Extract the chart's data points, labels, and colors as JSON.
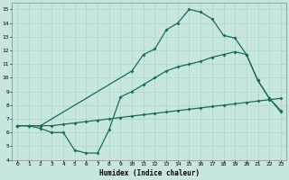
{
  "xlabel": "Humidex (Indice chaleur)",
  "xlim": [
    -0.5,
    23.5
  ],
  "ylim": [
    4,
    15.5
  ],
  "yticks": [
    4,
    5,
    6,
    7,
    8,
    9,
    10,
    11,
    12,
    13,
    14,
    15
  ],
  "xticks": [
    0,
    1,
    2,
    3,
    4,
    5,
    6,
    7,
    8,
    9,
    10,
    11,
    12,
    13,
    14,
    15,
    16,
    17,
    18,
    19,
    20,
    21,
    22,
    23
  ],
  "bg_color": "#c8e6e0",
  "line_color": "#1a6b5a",
  "grid_color": "#b0d8d0",
  "line1_x": [
    0,
    1,
    2,
    10,
    11,
    12,
    13,
    14,
    15,
    16,
    17,
    18,
    19,
    20,
    21,
    22,
    23
  ],
  "line1_y": [
    6.5,
    6.5,
    6.5,
    10.5,
    11.7,
    12.1,
    13.5,
    14.0,
    15.0,
    14.8,
    14.3,
    13.1,
    12.9,
    11.7,
    9.8,
    8.5,
    7.5
  ],
  "line2_x": [
    0,
    1,
    2,
    3,
    4,
    5,
    6,
    7,
    8,
    9,
    10,
    11,
    12,
    13,
    14,
    15,
    16,
    17,
    18,
    19,
    20,
    21,
    22,
    23
  ],
  "line2_y": [
    6.5,
    6.5,
    6.5,
    6.5,
    6.6,
    6.7,
    6.8,
    6.9,
    7.0,
    7.1,
    7.2,
    7.3,
    7.4,
    7.5,
    7.6,
    7.7,
    7.8,
    7.9,
    8.0,
    8.1,
    8.2,
    8.3,
    8.4,
    8.5
  ],
  "line3_x": [
    0,
    1,
    2,
    3,
    4,
    5,
    6,
    7,
    8,
    9,
    10,
    11,
    12,
    13,
    14,
    15,
    16,
    17,
    18,
    19,
    20,
    21,
    22,
    23
  ],
  "line3_y": [
    6.5,
    6.5,
    6.3,
    6.0,
    6.0,
    4.7,
    4.5,
    4.5,
    6.2,
    8.6,
    9.0,
    9.5,
    10.0,
    10.5,
    10.8,
    11.0,
    11.2,
    11.5,
    11.7,
    11.9,
    11.7,
    9.8,
    8.5,
    7.6
  ]
}
